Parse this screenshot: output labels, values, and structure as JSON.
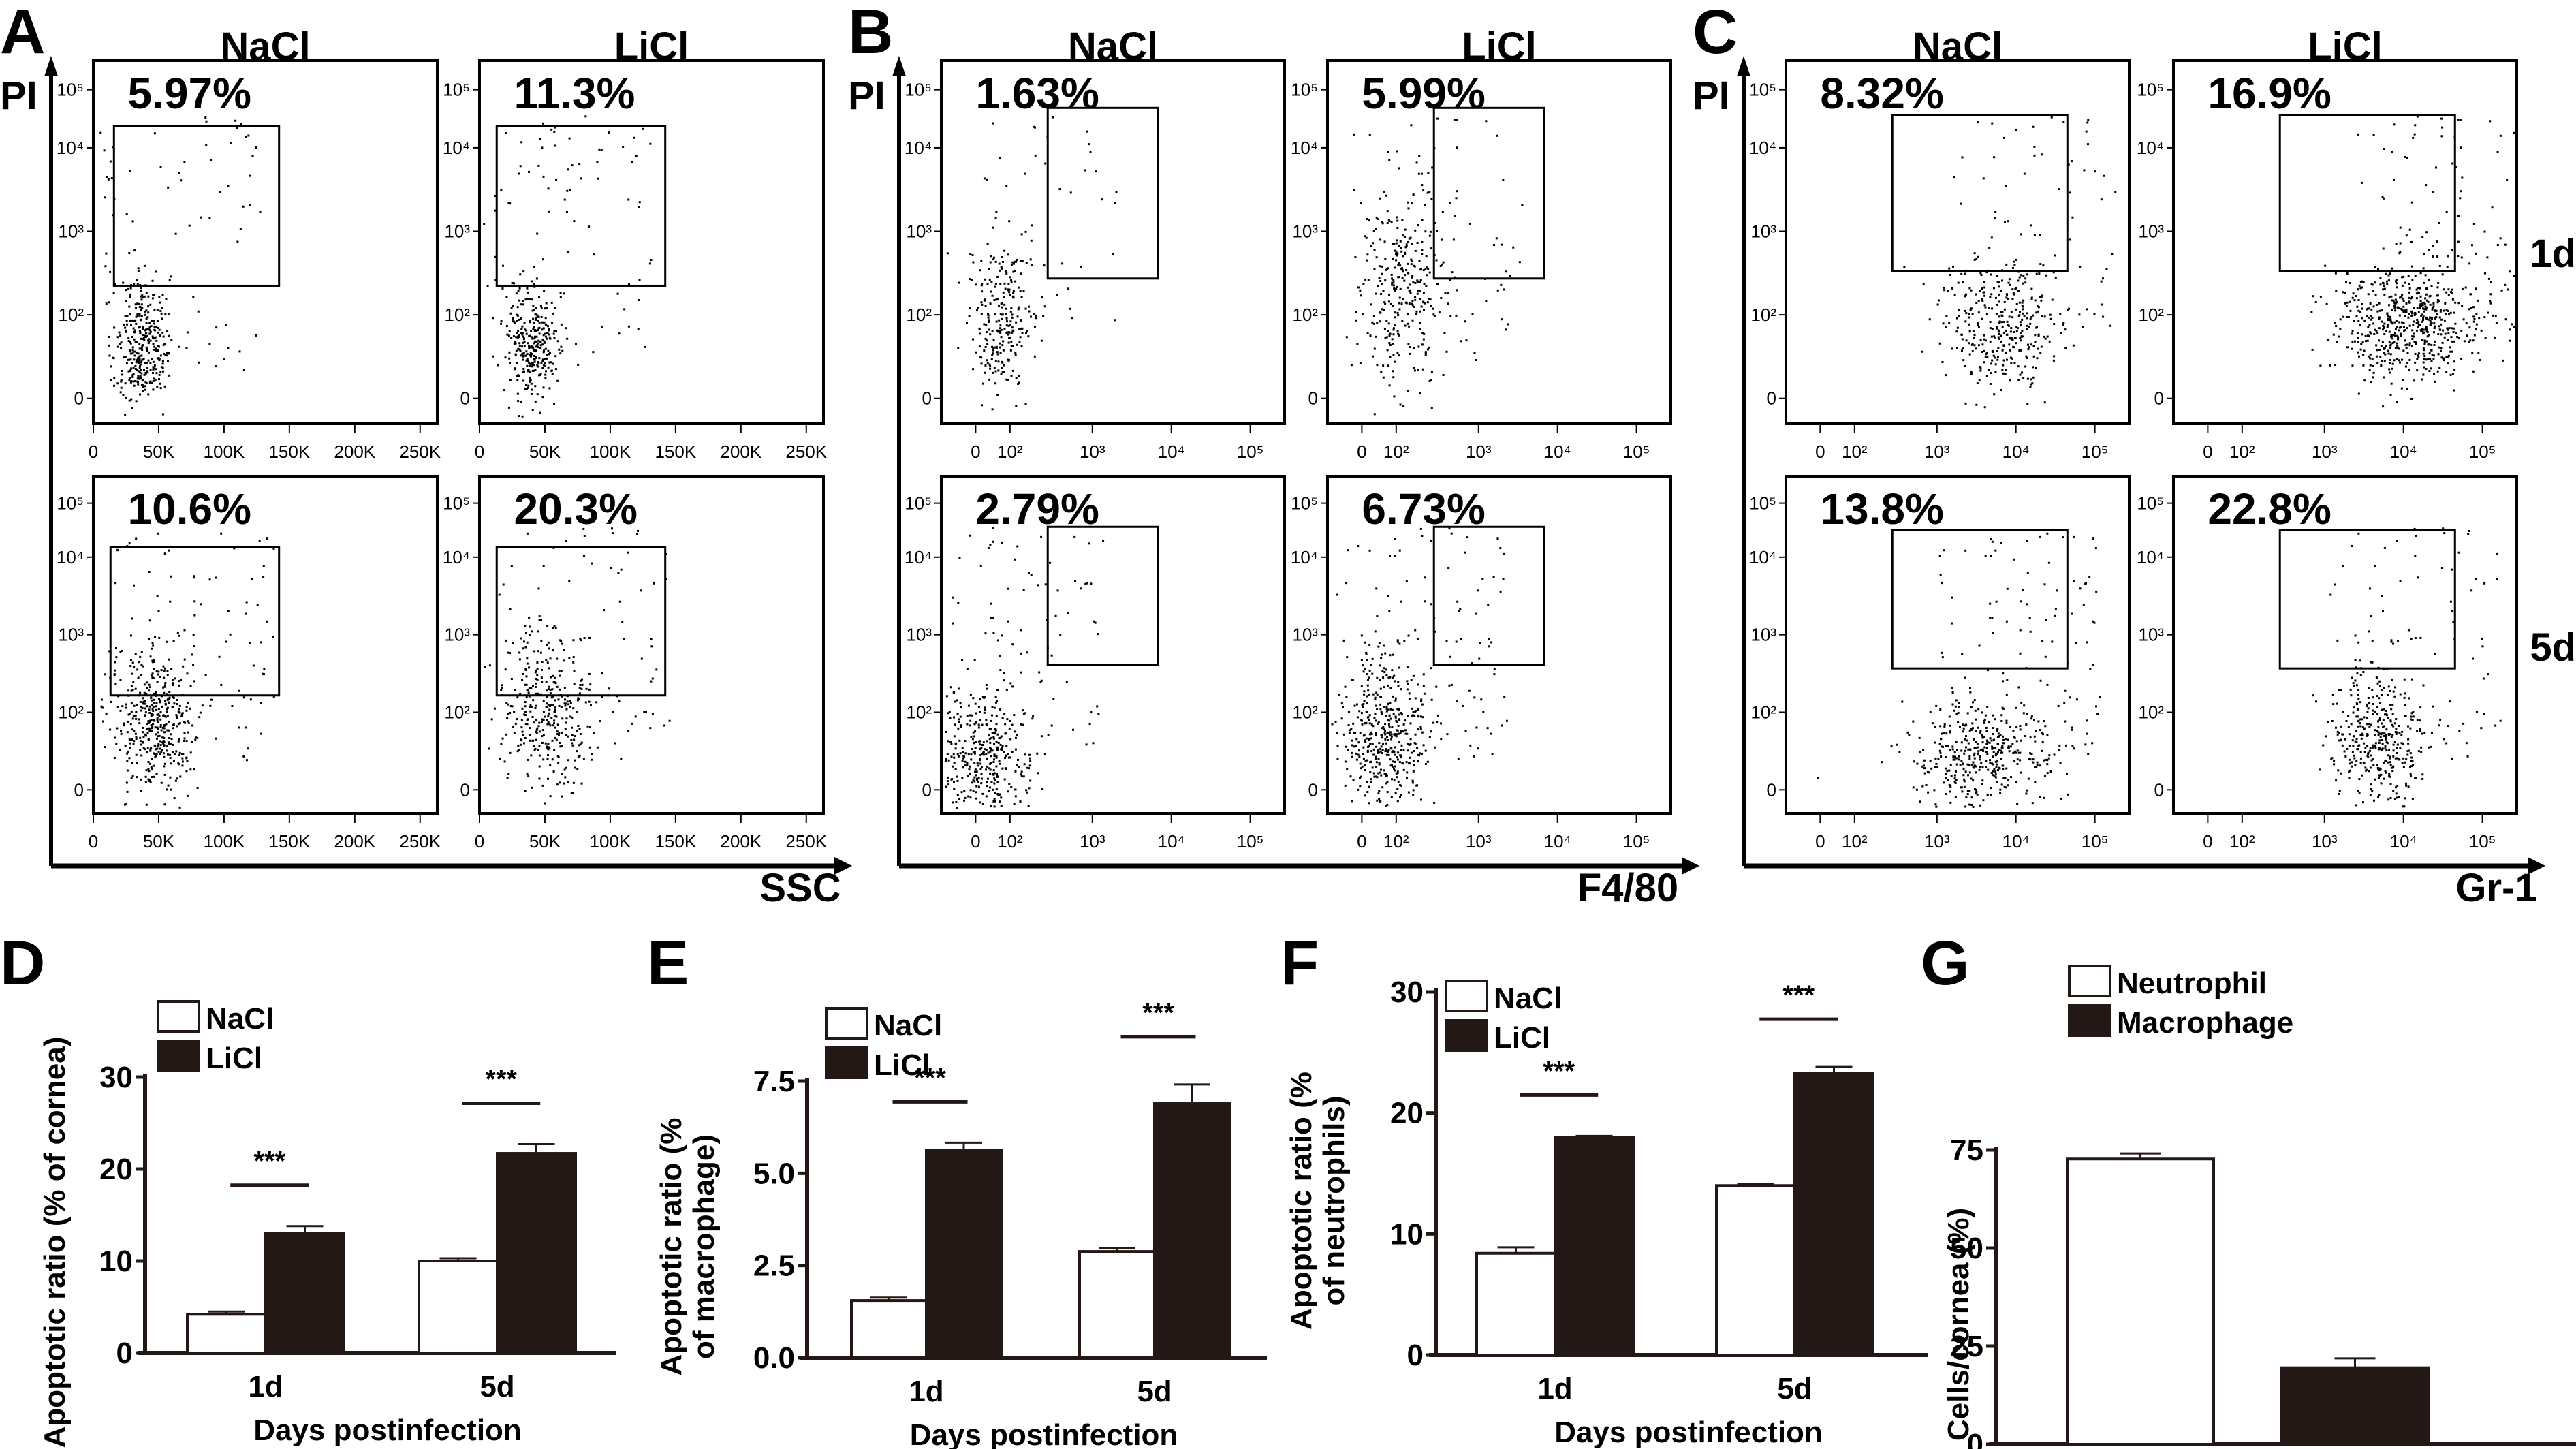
{
  "flow": {
    "y_axis_label": "PI",
    "row_labels": [
      "1d",
      "5d"
    ],
    "column_heads": [
      "NaCl",
      "LiCl"
    ],
    "panels": [
      {
        "letter": "A",
        "x_axis_label": "SSC",
        "x_scale": "linear",
        "x_ticks": [
          "0",
          "50K",
          "100K",
          "150K",
          "200K",
          "250K"
        ],
        "y_ticks": [
          "0",
          "10²",
          "10³",
          "10⁴",
          "10⁵"
        ],
        "gated_percent": {
          "NaCl_1d": "5.97%",
          "LiCl_1d": "11.3%",
          "NaCl_5d": "10.6%",
          "LiCl_5d": "20.3%"
        }
      },
      {
        "letter": "B",
        "x_axis_label": "F4/80",
        "x_scale": "log",
        "x_ticks": [
          "0",
          "10²",
          "10³",
          "10⁴",
          "10⁵"
        ],
        "y_ticks": [
          "0",
          "10²",
          "10³",
          "10⁴",
          "10⁵"
        ],
        "gated_percent": {
          "NaCl_1d": "1.63%",
          "LiCl_1d": "5.99%",
          "NaCl_5d": "2.79%",
          "LiCl_5d": "6.73%"
        }
      },
      {
        "letter": "C",
        "x_axis_label": "Gr-1",
        "x_scale": "log",
        "x_ticks": [
          "0",
          "10²",
          "10³",
          "10⁴",
          "10⁵"
        ],
        "y_ticks": [
          "0",
          "10²",
          "10³",
          "10⁴",
          "10⁵"
        ],
        "gated_percent": {
          "NaCl_1d": "8.32%",
          "LiCl_1d": "16.9%",
          "NaCl_5d": "13.8%",
          "LiCl_5d": "22.8%"
        }
      }
    ]
  },
  "chart_data": [
    {
      "letter": "D",
      "type": "bar",
      "title": "",
      "xlabel": "Days postinfection",
      "ylabel": "Apoptotic ratio (% of cornea)",
      "categories": [
        "1d",
        "5d"
      ],
      "ylim": [
        0,
        30
      ],
      "yticks": [
        "0",
        "10",
        "20",
        "30"
      ],
      "ytick_values": [
        0,
        10,
        20,
        30
      ],
      "legend": "top-left",
      "series": [
        {
          "name": "NaCl",
          "fill": "#ffffff",
          "values": [
            4.2,
            10.0
          ],
          "errors": [
            0.3,
            0.3
          ]
        },
        {
          "name": "LiCl",
          "fill": "#231815",
          "values": [
            13.0,
            21.7
          ],
          "errors": [
            0.8,
            1.0
          ]
        }
      ],
      "significance": [
        "***",
        "***"
      ]
    },
    {
      "letter": "E",
      "type": "bar",
      "title": "",
      "xlabel": "Days postinfection",
      "ylabel": "Apoptotic ratio (% of macrophage)",
      "ylabel_lines": [
        "Apoptotic ratio (%",
        "of macrophage)"
      ],
      "categories": [
        "1d",
        "5d"
      ],
      "ylim": [
        0,
        7.5
      ],
      "yticks": [
        "0.0",
        "2.5",
        "5.0",
        "7.5"
      ],
      "ytick_values": [
        0,
        2.5,
        5.0,
        7.5
      ],
      "legend": "top-left",
      "series": [
        {
          "name": "NaCl",
          "fill": "#ffffff",
          "values": [
            1.55,
            2.88
          ],
          "errors": [
            0.08,
            0.1
          ]
        },
        {
          "name": "LiCl",
          "fill": "#231815",
          "values": [
            5.63,
            6.89
          ],
          "errors": [
            0.2,
            0.52
          ]
        }
      ],
      "significance": [
        "***",
        "***"
      ]
    },
    {
      "letter": "F",
      "type": "bar",
      "title": "",
      "xlabel": "Days postinfection",
      "ylabel": "Apoptotic ratio (% of neutrophils)",
      "ylabel_lines": [
        "Apoptotic ratio (%",
        "of neutrophils)"
      ],
      "categories": [
        "1d",
        "5d"
      ],
      "ylim": [
        0,
        30
      ],
      "yticks": [
        "0",
        "10",
        "20",
        "30"
      ],
      "ytick_values": [
        0,
        10,
        20,
        30
      ],
      "legend": "top-left",
      "series": [
        {
          "name": "NaCl",
          "fill": "#ffffff",
          "values": [
            8.4,
            14.0
          ],
          "errors": [
            0.5,
            0.1
          ]
        },
        {
          "name": "LiCl",
          "fill": "#231815",
          "values": [
            18.0,
            23.3
          ],
          "errors": [
            0.1,
            0.5
          ]
        }
      ],
      "significance": [
        "***",
        "***"
      ]
    },
    {
      "letter": "G",
      "type": "bar",
      "title": "",
      "xlabel": "",
      "ylabel": "Cells/cornea (%)",
      "categories": [
        "Neutrophil",
        "Macrophage"
      ],
      "ylim": [
        0,
        75
      ],
      "yticks": [
        "0",
        "25",
        "50",
        "75"
      ],
      "ytick_values": [
        0,
        25,
        50,
        75
      ],
      "legend": "top-left",
      "series": [
        {
          "name": "Neutrophil",
          "fill": "#ffffff",
          "values": [
            72.7
          ],
          "errors": [
            1.4
          ]
        },
        {
          "name": "Macrophage",
          "fill": "#231815",
          "values": [
            19.5
          ],
          "errors": [
            2.4
          ]
        }
      ]
    }
  ]
}
